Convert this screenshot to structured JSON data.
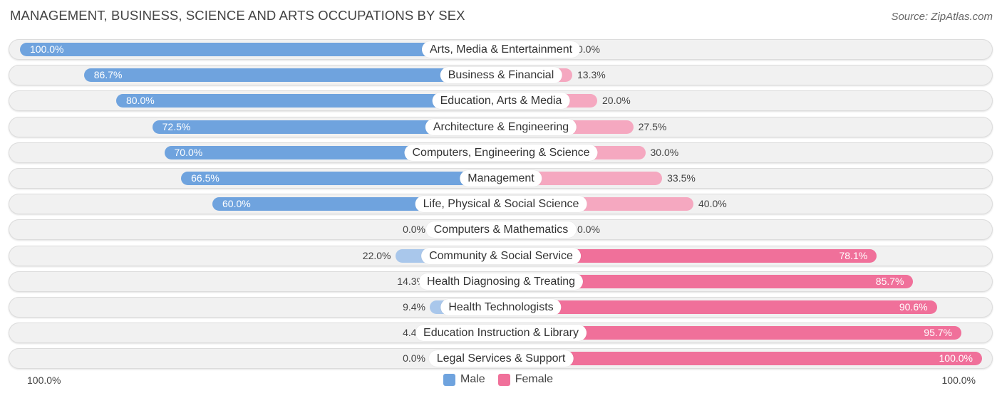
{
  "title": "MANAGEMENT, BUSINESS, SCIENCE AND ARTS OCCUPATIONS BY SEX",
  "source": "Source: ZipAtlas.com",
  "colors": {
    "male_strong": "#6fa3de",
    "male_light": "#a9c7eb",
    "female_strong": "#f0709a",
    "female_light": "#f5a8c0",
    "track": "#f1f1f1"
  },
  "legend": {
    "male_label": "Male",
    "female_label": "Female"
  },
  "axis": {
    "left_label": "100.0%",
    "right_label": "100.0%"
  },
  "chart_data": {
    "type": "bar",
    "orientation": "horizontal-diverging",
    "title": "MANAGEMENT, BUSINESS, SCIENCE AND ARTS OCCUPATIONS BY SEX",
    "xlim": [
      -100,
      100
    ],
    "categories": [
      "Arts, Media & Entertainment",
      "Business & Financial",
      "Education, Arts & Media",
      "Architecture & Engineering",
      "Computers, Engineering & Science",
      "Management",
      "Life, Physical & Social Science",
      "Computers & Mathematics",
      "Community & Social Service",
      "Health Diagnosing & Treating",
      "Health Technologists",
      "Education Instruction & Library",
      "Legal Services & Support"
    ],
    "series": [
      {
        "name": "Male",
        "values": [
          100.0,
          86.7,
          80.0,
          72.5,
          70.0,
          66.5,
          60.0,
          0.0,
          22.0,
          14.3,
          9.4,
          4.4,
          0.0
        ],
        "labels": [
          "100.0%",
          "86.7%",
          "80.0%",
          "72.5%",
          "70.0%",
          "66.5%",
          "60.0%",
          "0.0%",
          "22.0%",
          "14.3%",
          "9.4%",
          "4.4%",
          "0.0%"
        ]
      },
      {
        "name": "Female",
        "values": [
          0.0,
          13.3,
          20.0,
          27.5,
          30.0,
          33.5,
          40.0,
          0.0,
          78.1,
          85.7,
          90.6,
          95.7,
          100.0
        ],
        "labels": [
          "0.0%",
          "13.3%",
          "20.0%",
          "27.5%",
          "30.0%",
          "33.5%",
          "40.0%",
          "0.0%",
          "78.1%",
          "85.7%",
          "90.6%",
          "95.7%",
          "100.0%"
        ]
      }
    ]
  }
}
